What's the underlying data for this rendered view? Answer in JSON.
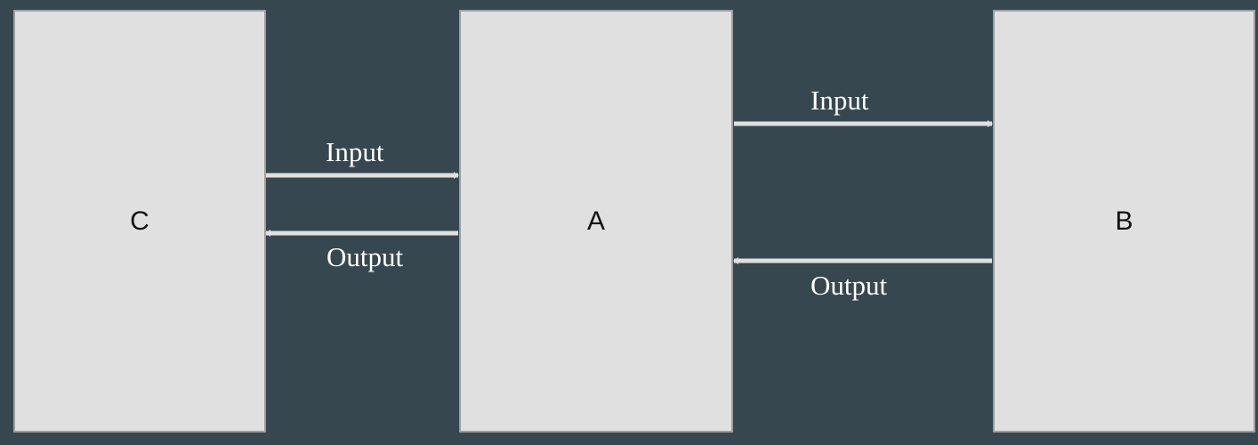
{
  "nodes": {
    "c": "C",
    "a": "A",
    "b": "B"
  },
  "edges": {
    "c_to_a": "Input",
    "a_to_c": "Output",
    "a_to_b": "Input",
    "b_to_a": "Output"
  },
  "colors": {
    "background": "#37474f",
    "box_fill": "#e0e0e0",
    "box_border": "#9e9e9e",
    "arrow": "#e0e0e0",
    "label": "#ffffff"
  }
}
